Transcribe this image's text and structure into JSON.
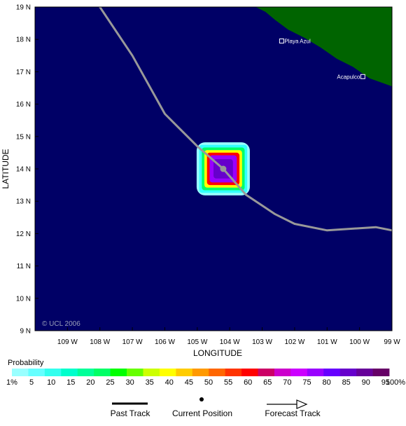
{
  "map": {
    "lon_range": [
      -110,
      -99
    ],
    "lat_range": [
      9,
      19
    ],
    "lon_ticks": [
      {
        "value": -109,
        "label": "109 W"
      },
      {
        "value": -108,
        "label": "108 W"
      },
      {
        "value": -107,
        "label": "107 W"
      },
      {
        "value": -106,
        "label": "106 W"
      },
      {
        "value": -105,
        "label": "105 W"
      },
      {
        "value": -104,
        "label": "104 W"
      },
      {
        "value": -103,
        "label": "103 W"
      },
      {
        "value": -102,
        "label": "102 W"
      },
      {
        "value": -101,
        "label": "101 W"
      },
      {
        "value": -100,
        "label": "100 W"
      },
      {
        "value": -99,
        "label": "99 W"
      }
    ],
    "lat_ticks": [
      {
        "value": 9,
        "label": "9 N"
      },
      {
        "value": 10,
        "label": "10 N"
      },
      {
        "value": 11,
        "label": "11 N"
      },
      {
        "value": 12,
        "label": "12 N"
      },
      {
        "value": 13,
        "label": "13 N"
      },
      {
        "value": 14,
        "label": "14 N"
      },
      {
        "value": 15,
        "label": "15 N"
      },
      {
        "value": 16,
        "label": "16 N"
      },
      {
        "value": 17,
        "label": "17 N"
      },
      {
        "value": 18,
        "label": "18 N"
      },
      {
        "value": 19,
        "label": "19 N"
      }
    ],
    "xlabel": "LONGITUDE",
    "ylabel": "LATITUDE",
    "copyright": "© UCL 2006",
    "ocean_color": "#000066",
    "land_color": "#006400",
    "track_color": "#999999",
    "coastline": [
      [
        -103.2,
        19.0
      ],
      [
        -102.9,
        18.85
      ],
      [
        -102.6,
        18.6
      ],
      [
        -102.2,
        18.3
      ],
      [
        -101.7,
        18.05
      ],
      [
        -101.2,
        17.75
      ],
      [
        -100.7,
        17.4
      ],
      [
        -100.2,
        17.15
      ],
      [
        -99.7,
        16.8
      ],
      [
        -99.0,
        16.55
      ]
    ],
    "cities": [
      {
        "name": "Playa Azul",
        "lon": -102.4,
        "lat": 17.95,
        "label_side": "right"
      },
      {
        "name": "Acapulco",
        "lon": -99.9,
        "lat": 16.85,
        "label_side": "left"
      }
    ],
    "track": [
      [
        -108.0,
        19.0
      ],
      [
        -107.0,
        17.5
      ],
      [
        -106.0,
        15.7
      ],
      [
        -105.0,
        14.7
      ],
      [
        -104.2,
        14.0
      ],
      [
        -103.5,
        13.2
      ],
      [
        -102.6,
        12.6
      ],
      [
        -102.0,
        12.3
      ],
      [
        -101.0,
        12.1
      ],
      [
        -99.5,
        12.2
      ],
      [
        -99.0,
        12.1
      ]
    ],
    "current_position": {
      "lon": -104.2,
      "lat": 14.0
    },
    "probability_levels": [
      {
        "half_width_deg": 0.82,
        "color": "#99ffff"
      },
      {
        "half_width_deg": 0.74,
        "color": "#33ffff"
      },
      {
        "half_width_deg": 0.66,
        "color": "#00ff66"
      },
      {
        "half_width_deg": 0.58,
        "color": "#ffff00"
      },
      {
        "half_width_deg": 0.5,
        "color": "#ff0000"
      },
      {
        "half_width_deg": 0.42,
        "color": "#9900ff"
      },
      {
        "half_width_deg": 0.3,
        "color": "#6600cc"
      }
    ]
  },
  "legend": {
    "title": "Probability",
    "colors": [
      "#99ffff",
      "#66ffff",
      "#33ffee",
      "#00ffcc",
      "#00ff99",
      "#00ff66",
      "#00ff00",
      "#66ff00",
      "#ccff00",
      "#ffff00",
      "#ffcc00",
      "#ff9900",
      "#ff6600",
      "#ff3300",
      "#ff0000",
      "#cc0066",
      "#cc00cc",
      "#cc00ff",
      "#9900ff",
      "#6600ff",
      "#6600cc",
      "#660099",
      "#660066"
    ],
    "tick_labels": [
      "1%",
      "5",
      "10",
      "15",
      "20",
      "25",
      "30",
      "35",
      "40",
      "45",
      "50",
      "55",
      "60",
      "65",
      "70",
      "75",
      "80",
      "85",
      "90",
      "95",
      "100%"
    ]
  },
  "key": {
    "past_track": "Past Track",
    "current_position": "Current Position",
    "forecast_track": "Forecast Track"
  }
}
